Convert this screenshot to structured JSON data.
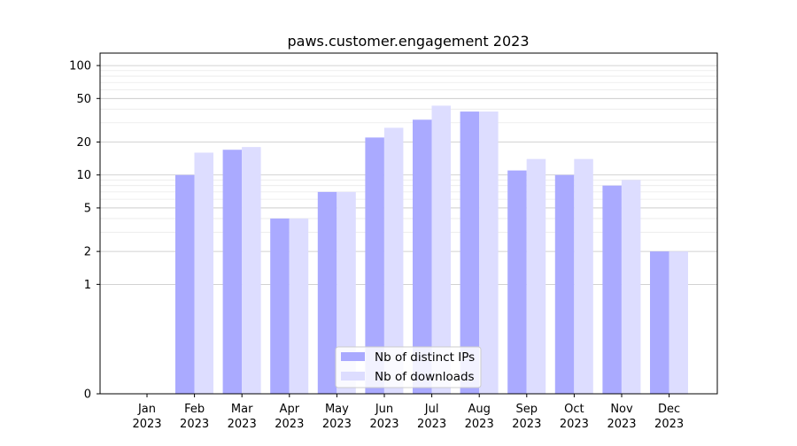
{
  "chart_data": {
    "type": "bar",
    "title": "paws.customer.engagement 2023",
    "xlabel": "",
    "ylabel": "",
    "y_scale": "symlog",
    "grid": "horizontal",
    "legend_position": "lower center",
    "categories": [
      {
        "month": "Jan",
        "year": "2023"
      },
      {
        "month": "Feb",
        "year": "2023"
      },
      {
        "month": "Mar",
        "year": "2023"
      },
      {
        "month": "Apr",
        "year": "2023"
      },
      {
        "month": "May",
        "year": "2023"
      },
      {
        "month": "Jun",
        "year": "2023"
      },
      {
        "month": "Jul",
        "year": "2023"
      },
      {
        "month": "Aug",
        "year": "2023"
      },
      {
        "month": "Sep",
        "year": "2023"
      },
      {
        "month": "Oct",
        "year": "2023"
      },
      {
        "month": "Nov",
        "year": "2023"
      },
      {
        "month": "Dec",
        "year": "2023"
      }
    ],
    "series": [
      {
        "name": "Nb of distinct IPs",
        "color": "#aaaaff",
        "values": [
          0,
          10,
          17,
          4,
          7,
          22,
          32,
          38,
          11,
          10,
          8,
          2
        ]
      },
      {
        "name": "Nb of downloads",
        "color": "#ddddff",
        "values": [
          0,
          16,
          18,
          4,
          7,
          27,
          43,
          38,
          14,
          14,
          9,
          2
        ]
      }
    ],
    "yticks": [
      "0",
      "1",
      "2",
      "5",
      "10",
      "20",
      "50",
      "100"
    ],
    "ylim": [
      0,
      130
    ]
  }
}
